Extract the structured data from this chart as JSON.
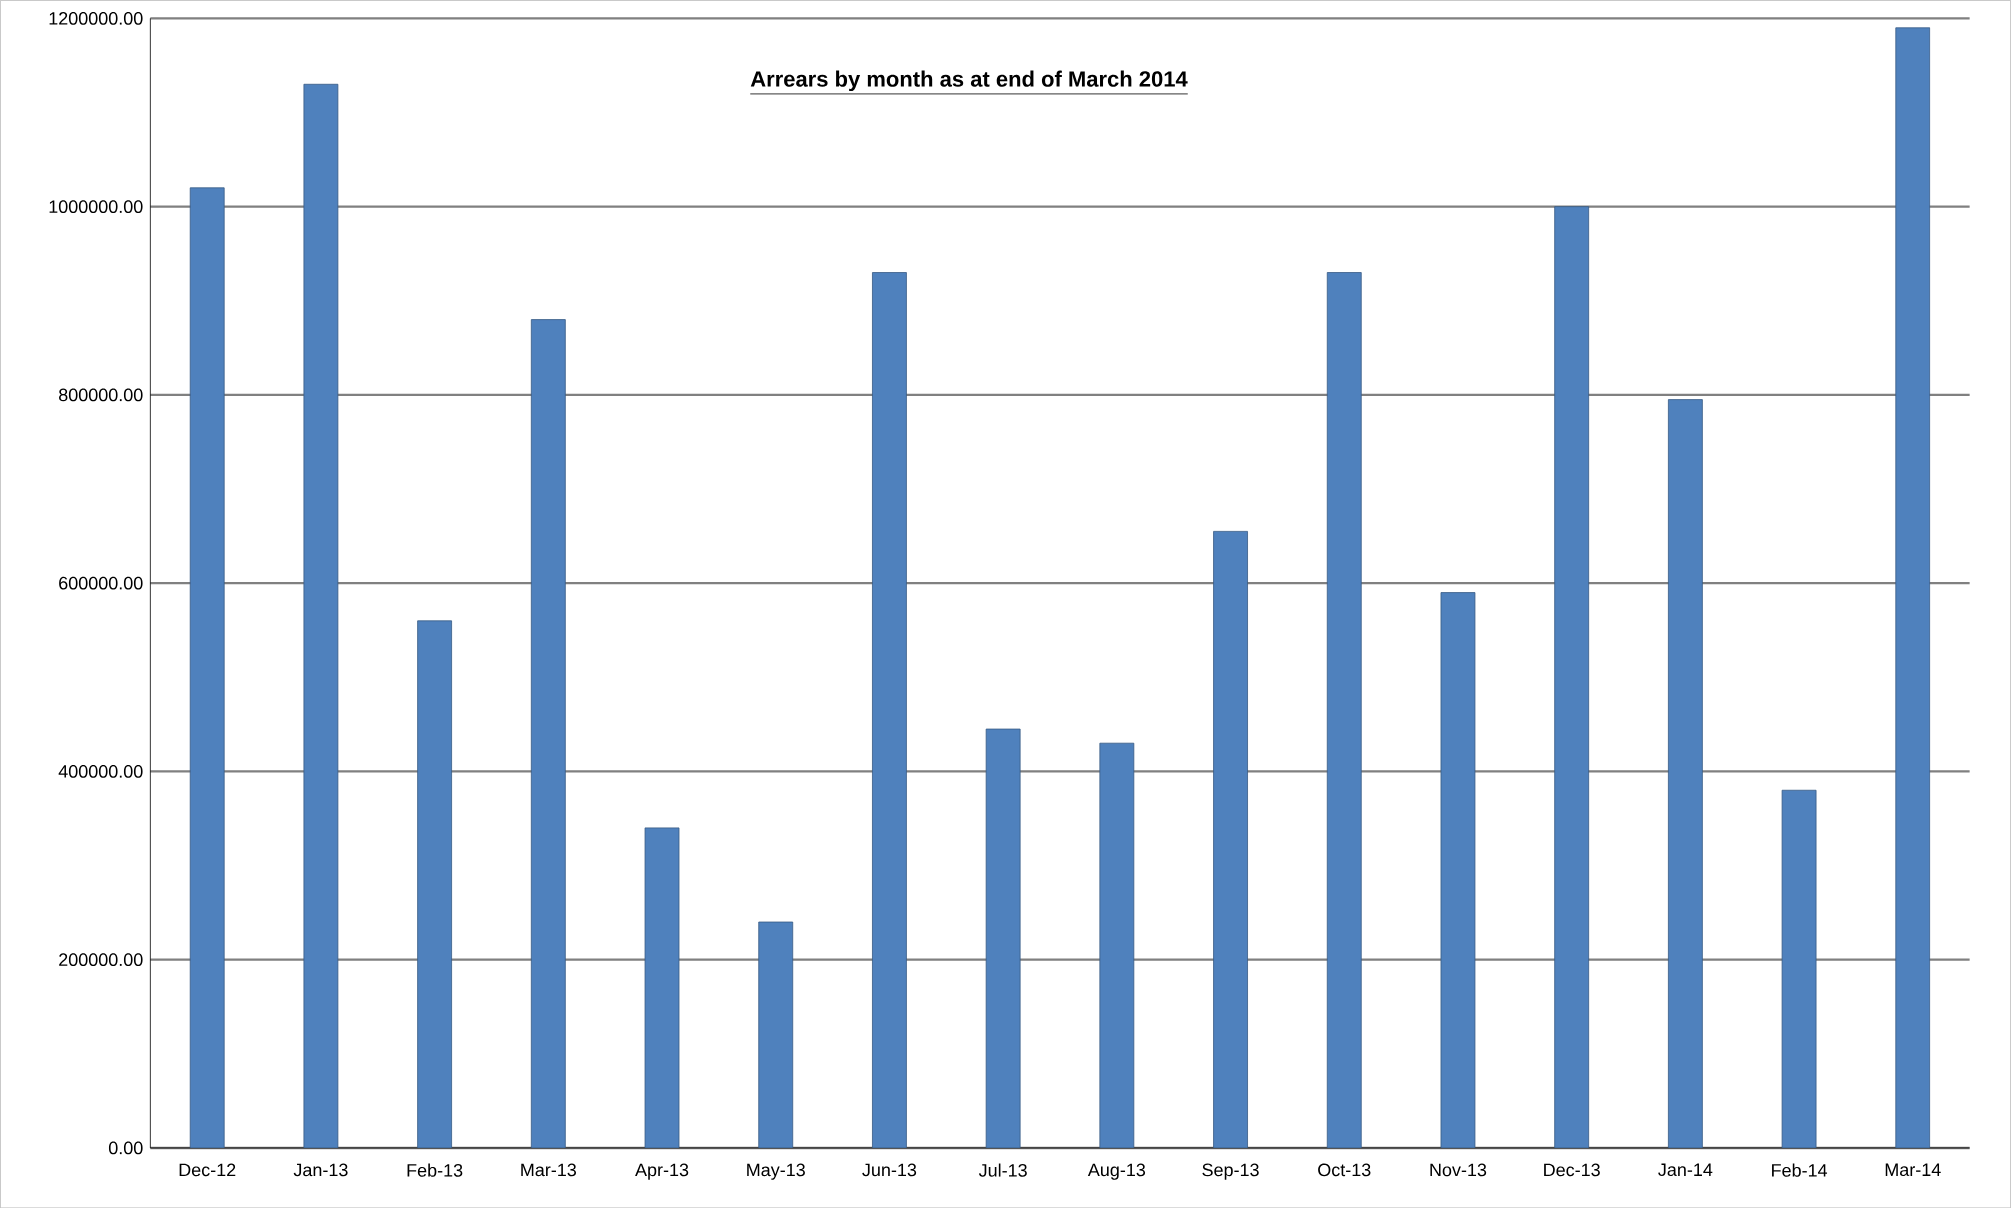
{
  "chart_data": {
    "type": "bar",
    "title": "Arrears by month as at end of March 2014",
    "categories": [
      "Dec-12",
      "Jan-13",
      "Feb-13",
      "Mar-13",
      "Apr-13",
      "May-13",
      "Jun-13",
      "Jul-13",
      "Aug-13",
      "Sep-13",
      "Oct-13",
      "Nov-13",
      "Dec-13",
      "Jan-14",
      "Feb-14",
      "Mar-14"
    ],
    "values": [
      1020000,
      1130000,
      560000,
      880000,
      340000,
      240000,
      930000,
      445000,
      430000,
      655000,
      930000,
      590000,
      1000000,
      795000,
      380000,
      1190000
    ],
    "color": "#4f81bd",
    "ylim": [
      0,
      1200000
    ],
    "yticks": [
      {
        "value": 0,
        "label": "0.00"
      },
      {
        "value": 200000,
        "label": "200000.00"
      },
      {
        "value": 400000,
        "label": "400000.00"
      },
      {
        "value": 600000,
        "label": "600000.00"
      },
      {
        "value": 800000,
        "label": "800000.00"
      },
      {
        "value": 1000000,
        "label": "1000000.00"
      },
      {
        "value": 1200000,
        "label": "1200000.00"
      }
    ],
    "grid": "y"
  }
}
